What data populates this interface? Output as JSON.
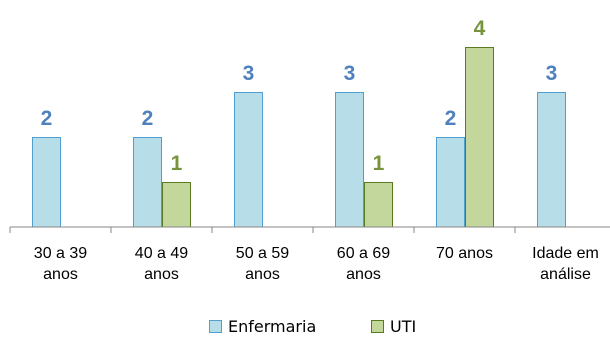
{
  "chart_data": {
    "type": "bar",
    "title": "",
    "xlabel": "",
    "ylabel": "",
    "ylim": [
      0,
      4
    ],
    "grid": false,
    "legend_position": "bottom",
    "categories": [
      [
        "30 a 39",
        "anos"
      ],
      [
        "40 a 49",
        "anos"
      ],
      [
        "50 a 59",
        "anos"
      ],
      [
        "60 a 69",
        "anos"
      ],
      [
        "70 anos"
      ],
      [
        "Idade em",
        "análise"
      ]
    ],
    "series": [
      {
        "name": "Enfermaria",
        "color": "#b7dde8",
        "stroke": "#4f9fd0",
        "label_color": "#4f81bd",
        "values": [
          2,
          2,
          3,
          3,
          2,
          3
        ]
      },
      {
        "name": "UTI",
        "color": "#c3d69b",
        "stroke": "#5a7a1f",
        "label_color": "#77933c",
        "values": [
          null,
          1,
          null,
          1,
          4,
          null
        ]
      }
    ]
  }
}
